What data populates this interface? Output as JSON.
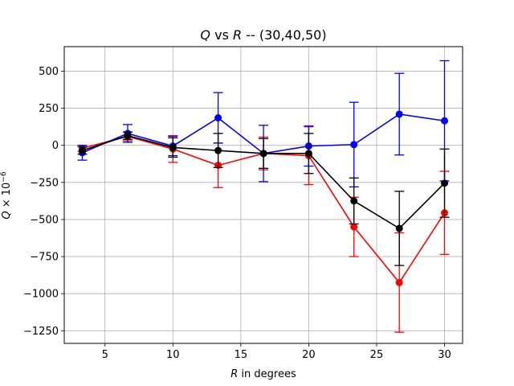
{
  "chart_data": {
    "type": "line",
    "title_text": {
      "q": "Q",
      "vs": " vs ",
      "r": "R",
      "rest": " -- (30,40,50)"
    },
    "xlabel": {
      "var": "R",
      "rest": " in degrees"
    },
    "ylabel": {
      "var": "Q",
      "times": " × 10",
      "exp": "−6"
    },
    "xlim": [
      2.0,
      31.33
    ],
    "ylim": [
      -1335,
      665
    ],
    "xticks": [
      5,
      10,
      15,
      20,
      25,
      30
    ],
    "yticks": [
      500,
      250,
      0,
      -250,
      -500,
      -750,
      -1000,
      -1250
    ],
    "ytick_labels": [
      "500",
      "250",
      "0",
      "−250",
      "−500",
      "−750",
      "−1000",
      "−1250"
    ],
    "grid": true,
    "x": [
      3.33,
      6.67,
      10.0,
      13.33,
      16.67,
      20.0,
      23.33,
      26.67,
      30.0
    ],
    "series": [
      {
        "color": "#ff0000",
        "values": [
          -20,
          60,
          -25,
          -135,
          -55,
          -70,
          -550,
          -925,
          -455
        ],
        "err": [
          20,
          30,
          90,
          150,
          110,
          195,
          200,
          335,
          280
        ]
      },
      {
        "color": "#0000ff",
        "values": [
          -50,
          80,
          -5,
          185,
          -55,
          -5,
          5,
          210,
          165
        ],
        "err": [
          50,
          60,
          65,
          170,
          190,
          135,
          285,
          275,
          405
        ]
      },
      {
        "color": "#000000",
        "values": [
          -35,
          65,
          -15,
          -35,
          -55,
          -55,
          -375,
          -560,
          -255
        ],
        "err": [
          25,
          25,
          65,
          115,
          100,
          135,
          155,
          250,
          230
        ]
      }
    ]
  }
}
